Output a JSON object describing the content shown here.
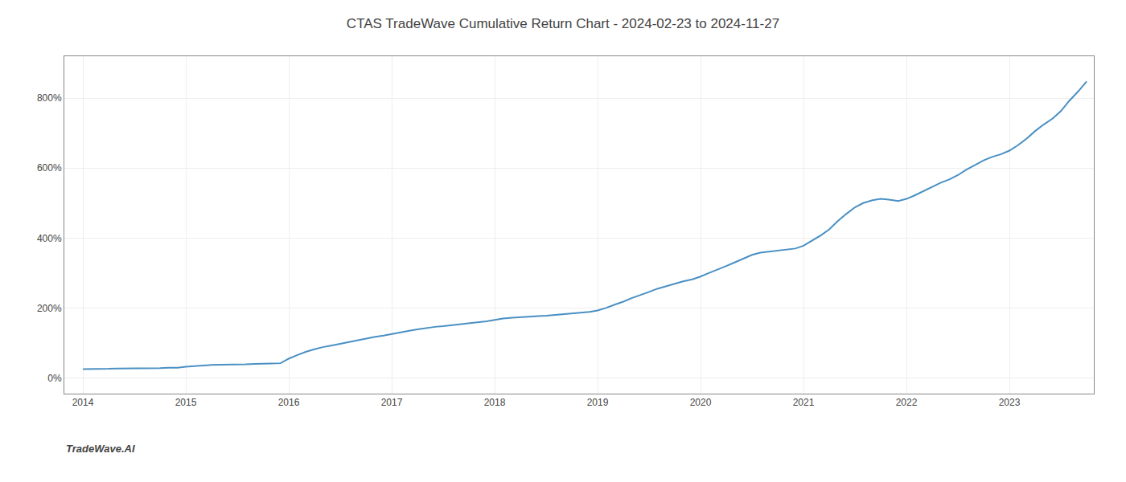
{
  "chart_data": {
    "type": "line",
    "title": "CTAS TradeWave Cumulative Return Chart - 2024-02-23 to 2024-11-27",
    "annotations": [
      "TradeWave.AI"
    ],
    "color": "#4a90c4",
    "grid": true,
    "x": [
      2014.0,
      2014.08,
      2014.17,
      2014.25,
      2014.33,
      2014.42,
      2014.5,
      2014.58,
      2014.67,
      2014.75,
      2014.83,
      2014.92,
      2015.0,
      2015.08,
      2015.17,
      2015.25,
      2015.33,
      2015.42,
      2015.5,
      2015.58,
      2015.67,
      2015.75,
      2015.83,
      2015.92,
      2016.0,
      2016.08,
      2016.17,
      2016.25,
      2016.33,
      2016.42,
      2016.5,
      2016.58,
      2016.67,
      2016.75,
      2016.83,
      2016.92,
      2017.0,
      2017.08,
      2017.17,
      2017.25,
      2017.33,
      2017.42,
      2017.5,
      2017.58,
      2017.67,
      2017.75,
      2017.83,
      2017.92,
      2018.0,
      2018.08,
      2018.17,
      2018.25,
      2018.33,
      2018.42,
      2018.5,
      2018.58,
      2018.67,
      2018.75,
      2018.83,
      2018.92,
      2019.0,
      2019.08,
      2019.17,
      2019.25,
      2019.33,
      2019.42,
      2019.5,
      2019.58,
      2019.67,
      2019.75,
      2019.83,
      2019.92,
      2020.0,
      2020.08,
      2020.17,
      2020.25,
      2020.33,
      2020.42,
      2020.5,
      2020.58,
      2020.67,
      2020.75,
      2020.83,
      2020.92,
      2021.0,
      2021.08,
      2021.17,
      2021.25,
      2021.33,
      2021.42,
      2021.5,
      2021.58,
      2021.67,
      2021.75,
      2021.83,
      2021.92,
      2022.0,
      2022.08,
      2022.17,
      2022.25,
      2022.33,
      2022.42,
      2022.5,
      2022.58,
      2022.67,
      2022.75,
      2022.83,
      2022.92,
      2023.0,
      2023.08,
      2023.17,
      2023.25,
      2023.33,
      2023.42,
      2023.5,
      2023.58,
      2023.67,
      2023.75
    ],
    "values": [
      25,
      25,
      26,
      26,
      27,
      27,
      27,
      28,
      28,
      28,
      29,
      29,
      32,
      34,
      36,
      37,
      38,
      38,
      39,
      39,
      40,
      40,
      41,
      42,
      55,
      65,
      75,
      82,
      88,
      93,
      98,
      103,
      108,
      113,
      117,
      121,
      126,
      131,
      135,
      139,
      143,
      146,
      148,
      151,
      153,
      156,
      159,
      162,
      166,
      170,
      172,
      174,
      176,
      177,
      178,
      180,
      182,
      185,
      187,
      189,
      193,
      200,
      210,
      218,
      228,
      237,
      246,
      255,
      263,
      270,
      276,
      282,
      290,
      300,
      310,
      320,
      330,
      342,
      352,
      358,
      361,
      364,
      367,
      370,
      378,
      392,
      408,
      425,
      448,
      470,
      488,
      500,
      508,
      512,
      510,
      506,
      512,
      522,
      535,
      548,
      558,
      568,
      580,
      595,
      610,
      622,
      632,
      640,
      650,
      665,
      685,
      706,
      724,
      742,
      763,
      792,
      820,
      848
    ],
    "xlim": [
      2013.82,
      2023.82
    ],
    "ylim": [
      -45,
      920
    ],
    "xticks": [
      2014,
      2015,
      2016,
      2017,
      2018,
      2019,
      2020,
      2021,
      2022,
      2023
    ],
    "yticks": [
      {
        "value": 0,
        "label": "0%"
      },
      {
        "value": 200,
        "label": "200%"
      },
      {
        "value": 400,
        "label": "400%"
      },
      {
        "value": 600,
        "label": "600%"
      },
      {
        "value": 800,
        "label": "800%"
      }
    ]
  }
}
